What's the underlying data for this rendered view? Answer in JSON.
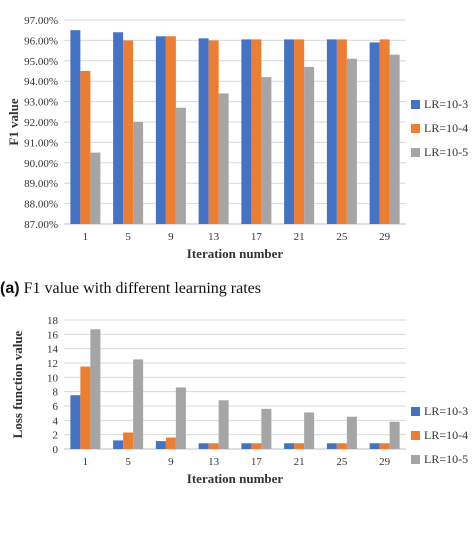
{
  "figure": {
    "caption_a_tag": "(a)",
    "caption_a_text": " F1 value with different learning rates"
  },
  "chart_data": [
    {
      "type": "bar",
      "categories": [
        "1",
        "5",
        "9",
        "13",
        "17",
        "21",
        "25",
        "29"
      ],
      "xlabel": "Iteration number",
      "ylabel": "F1 value",
      "ylim": [
        87,
        97
      ],
      "yticks": [
        "87.00%",
        "88.00%",
        "89.00%",
        "90.00%",
        "91.00%",
        "92.00%",
        "93.00%",
        "94.00%",
        "95.00%",
        "96.00%",
        "97.00%"
      ],
      "grid": true,
      "legend_position": "right",
      "series": [
        {
          "name": "LR=10-3",
          "color": "#4472c4",
          "values": [
            96.5,
            96.4,
            96.2,
            96.1,
            96.05,
            96.05,
            96.05,
            95.9
          ]
        },
        {
          "name": "LR=10-4",
          "color": "#ed7d31",
          "values": [
            94.5,
            96.0,
            96.2,
            96.0,
            96.05,
            96.05,
            96.05,
            96.05
          ]
        },
        {
          "name": "LR=10-5",
          "color": "#a5a5a5",
          "values": [
            90.5,
            92.0,
            92.7,
            93.4,
            94.2,
            94.7,
            95.1,
            95.3
          ]
        }
      ]
    },
    {
      "type": "bar",
      "categories": [
        "1",
        "5",
        "9",
        "13",
        "17",
        "21",
        "25",
        "29"
      ],
      "xlabel": "Iteration number",
      "ylabel": "Loss function value",
      "ylim": [
        0,
        18
      ],
      "yticks": [
        "0",
        "2",
        "4",
        "6",
        "8",
        "10",
        "12",
        "14",
        "16",
        "18"
      ],
      "grid": true,
      "legend_position": "right",
      "series": [
        {
          "name": "LR=10-3",
          "color": "#4472c4",
          "values": [
            7.5,
            1.2,
            1.1,
            0.8,
            0.8,
            0.8,
            0.8,
            0.8
          ]
        },
        {
          "name": "LR=10-4",
          "color": "#ed7d31",
          "values": [
            11.5,
            2.3,
            1.6,
            0.8,
            0.8,
            0.8,
            0.8,
            0.8
          ]
        },
        {
          "name": "LR=10-5",
          "color": "#a5a5a5",
          "values": [
            16.7,
            12.5,
            8.6,
            6.8,
            5.6,
            5.1,
            4.5,
            3.8
          ]
        }
      ]
    }
  ]
}
